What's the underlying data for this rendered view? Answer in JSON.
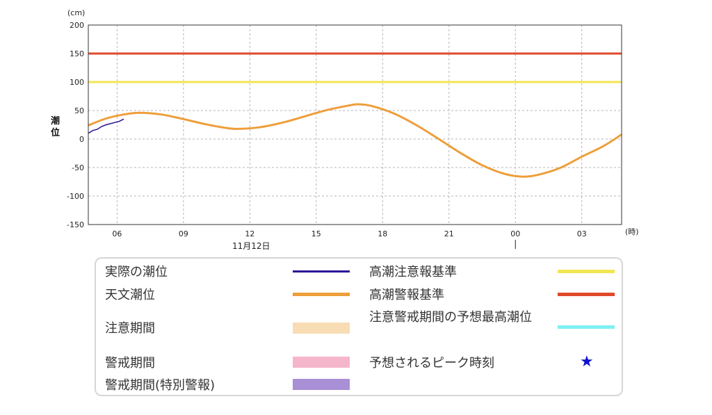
{
  "chart_data": {
    "type": "line",
    "y_unit": "(cm)",
    "x_unit": "(時)",
    "ylabel": "潮位",
    "date_label": "11月12日",
    "ylim": [
      -150,
      200
    ],
    "yticks": [
      200,
      150,
      100,
      50,
      0,
      -50,
      -100,
      -150
    ],
    "xlim_hours": [
      4.7,
      28.8
    ],
    "xticks": [
      {
        "h": 6,
        "label": "06"
      },
      {
        "h": 9,
        "label": "09"
      },
      {
        "h": 12,
        "label": "12"
      },
      {
        "h": 15,
        "label": "15"
      },
      {
        "h": 18,
        "label": "18"
      },
      {
        "h": 21,
        "label": "21"
      },
      {
        "h": 24,
        "label": "00"
      },
      {
        "h": 27,
        "label": "03"
      }
    ],
    "thresholds": [
      {
        "name": "高潮警報基準",
        "value": 150,
        "color": "#e04a2a"
      },
      {
        "name": "高潮注意報基準",
        "value": 100,
        "color": "#f2e650"
      }
    ],
    "series": [
      {
        "name": "天文潮位",
        "color": "#ee9e3a",
        "x": [
          4.7,
          5.5,
          6.3,
          7.0,
          8.0,
          9.0,
          10.0,
          11.0,
          11.6,
          12.5,
          13.5,
          14.5,
          15.5,
          16.5,
          16.9,
          17.5,
          18.5,
          19.5,
          20.5,
          21.5,
          22.5,
          23.5,
          24.3,
          25.0,
          26.0,
          27.0,
          28.0,
          28.8
        ],
        "y": [
          24,
          36,
          43,
          46,
          43,
          35,
          26,
          19,
          18,
          21,
          29,
          40,
          51,
          59,
          61,
          58,
          45,
          25,
          1,
          -24,
          -46,
          -61,
          -66,
          -63,
          -51,
          -31,
          -12,
          8
        ]
      },
      {
        "name": "実際の潮位",
        "color": "#2b0f96",
        "x": [
          4.7,
          4.9,
          5.1,
          5.3,
          5.5,
          5.7,
          5.9,
          6.1,
          6.3
        ],
        "y": [
          10,
          15,
          17,
          22,
          25,
          27,
          29,
          31,
          35
        ]
      }
    ]
  },
  "legend": {
    "items": [
      {
        "label": "実際の潮位",
        "kind": "line",
        "color": "#2b0f96"
      },
      {
        "label": "天文潮位",
        "kind": "line",
        "color": "#ee9e3a"
      },
      {
        "label": "注意期間",
        "kind": "box",
        "color": "#f8dcb4"
      },
      {
        "label": "警戒期間",
        "kind": "box",
        "color": "#f5b6cc"
      },
      {
        "label": "警戒期間(特別警報)",
        "kind": "box",
        "color": "#a98fd6"
      },
      {
        "label": "高潮注意報基準",
        "kind": "line",
        "color": "#f2e650"
      },
      {
        "label": "高潮警報基準",
        "kind": "line",
        "color": "#e04a2a"
      },
      {
        "label": "注意警戒期間の予想最高潮位",
        "kind": "line",
        "color": "#7ff0f5"
      },
      {
        "label": "予想されるピーク時刻",
        "kind": "star",
        "color": "#1010d0",
        "symbol": "★"
      }
    ]
  }
}
